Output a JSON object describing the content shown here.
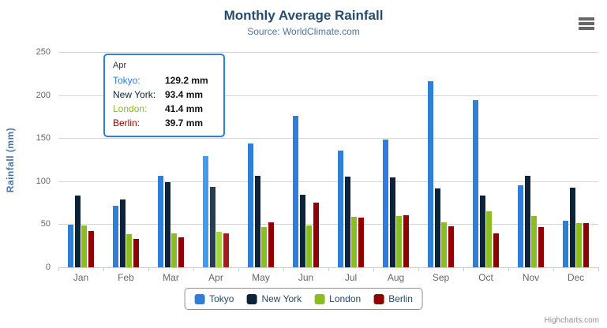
{
  "chart_data": {
    "type": "bar",
    "title": "Monthly Average Rainfall",
    "subtitle": "Source: WorldClimate.com",
    "xlabel": "",
    "ylabel": "Rainfall (mm)",
    "ylim": [
      0,
      250
    ],
    "yticks": [
      0,
      50,
      100,
      150,
      200,
      250
    ],
    "grid": true,
    "legend_position": "bottom",
    "categories": [
      "Jan",
      "Feb",
      "Mar",
      "Apr",
      "May",
      "Jun",
      "Jul",
      "Aug",
      "Sep",
      "Oct",
      "Nov",
      "Dec"
    ],
    "hovered_category": "Apr",
    "hovered_category_index": 3,
    "series": [
      {
        "name": "Tokyo",
        "color": "#2f7ed8",
        "hover_color": "#4998f2",
        "values": [
          49.9,
          71.5,
          106.4,
          129.2,
          144.0,
          176.0,
          135.6,
          148.5,
          216.4,
          194.1,
          95.6,
          54.4
        ]
      },
      {
        "name": "New York",
        "color": "#0d233a",
        "hover_color": "#273d54",
        "values": [
          83.6,
          78.8,
          98.5,
          93.4,
          106.0,
          84.5,
          105.0,
          104.3,
          91.2,
          83.5,
          106.6,
          92.3
        ]
      },
      {
        "name": "London",
        "color": "#8bbc21",
        "hover_color": "#a5d63b",
        "values": [
          48.9,
          38.8,
          39.3,
          41.4,
          47.0,
          48.3,
          59.0,
          59.6,
          52.4,
          65.2,
          59.3,
          51.2
        ]
      },
      {
        "name": "Berlin",
        "color": "#910000",
        "hover_color": "#ab1a1a",
        "values": [
          42.4,
          33.2,
          34.5,
          39.7,
          52.6,
          75.5,
          57.4,
          60.4,
          47.6,
          39.1,
          46.8,
          51.1
        ]
      }
    ]
  },
  "tooltip": {
    "header": "Apr",
    "rows": [
      {
        "label": "Tokyo:",
        "value": "129.2 mm",
        "color": "#2f7ed8"
      },
      {
        "label": "New York:",
        "value": "93.4 mm",
        "color": "#0d233a"
      },
      {
        "label": "London:",
        "value": "41.4 mm",
        "color": "#8bbc21"
      },
      {
        "label": "Berlin:",
        "value": "39.7 mm",
        "color": "#910000"
      }
    ]
  },
  "credits": "Highcharts.com",
  "ui_colors": {
    "title": "#274b6d",
    "subtitle": "#4d759e",
    "axis_labels": "#666666",
    "y_axis_title": "#4572a7",
    "gridline": "#d8d8d8",
    "axis_line": "#c0d0e0",
    "legend_text": "#274b6d",
    "legend_border": "#909090",
    "credits_text": "#909090",
    "tooltip_border": "#2f7ed8"
  }
}
